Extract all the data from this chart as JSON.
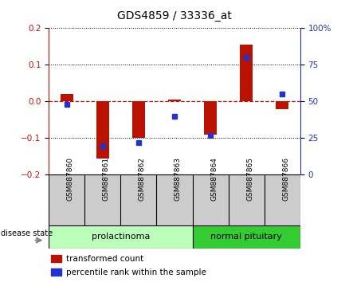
{
  "title": "GDS4859 / 33336_at",
  "samples": [
    "GSM887860",
    "GSM887861",
    "GSM887862",
    "GSM887863",
    "GSM887864",
    "GSM887865",
    "GSM887866"
  ],
  "transformed_count": [
    0.02,
    -0.155,
    -0.1,
    0.005,
    -0.09,
    0.155,
    -0.02
  ],
  "percentile_rank": [
    48,
    20,
    22,
    40,
    27,
    80,
    55
  ],
  "groups": [
    {
      "label": "prolactinoma",
      "start": 0,
      "end": 4,
      "color": "#bbffbb"
    },
    {
      "label": "normal pituitary",
      "start": 4,
      "end": 7,
      "color": "#33cc33"
    }
  ],
  "ylim_left": [
    -0.2,
    0.2
  ],
  "ylim_right": [
    0,
    100
  ],
  "yticks_left": [
    -0.2,
    -0.1,
    0.0,
    0.1,
    0.2
  ],
  "yticks_right": [
    0,
    25,
    50,
    75,
    100
  ],
  "bar_color": "#bb1100",
  "dot_color": "#2233cc",
  "zero_line_color": "#bb1100",
  "grid_color": "black",
  "background_color": "#ffffff",
  "plot_bg_color": "#ffffff",
  "sample_box_color": "#cccccc",
  "title_fontsize": 10,
  "tick_fontsize": 7.5,
  "sample_fontsize": 6.5,
  "group_fontsize": 8,
  "legend_fontsize": 7.5,
  "disease_state_label": "disease state",
  "legend_items": [
    "transformed count",
    "percentile rank within the sample"
  ],
  "bar_width": 0.35
}
